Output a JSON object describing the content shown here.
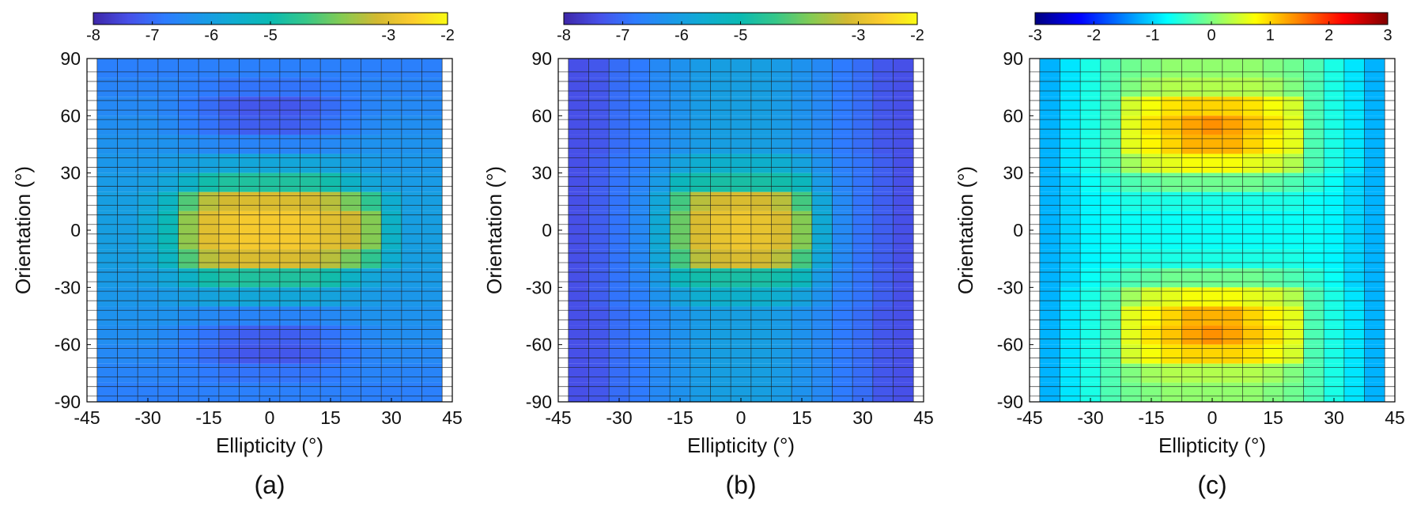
{
  "chart_data": [
    {
      "type": "heatmap",
      "panel_label": "(a)",
      "xlabel": "Ellipticity (°)",
      "ylabel": "Orientation (°)",
      "xlim": [
        -45,
        45
      ],
      "ylim": [
        -90,
        90
      ],
      "x_ticks": [
        -45,
        -30,
        -15,
        0,
        15,
        30,
        45
      ],
      "y_ticks": [
        -90,
        -60,
        -30,
        0,
        30,
        60,
        90
      ],
      "colorbar_range": [
        -8,
        -2
      ],
      "colorbar_ticks": [
        -8,
        -7,
        -6,
        -5,
        -3,
        -2
      ],
      "colormap": "parula",
      "x_centers": [
        -40,
        -35,
        -30,
        -25,
        -20,
        -15,
        -10,
        -5,
        0,
        5,
        10,
        15,
        20,
        25,
        30,
        35,
        40
      ],
      "y_centers": [
        85,
        75,
        65,
        55,
        45,
        35,
        25,
        15,
        5,
        -5,
        -15,
        -25,
        -35,
        -45,
        -55,
        -65,
        -75,
        -85
      ],
      "values": [
        [
          -6.7,
          -6.7,
          -6.7,
          -6.7,
          -6.7,
          -6.7,
          -6.7,
          -6.7,
          -6.7,
          -6.7,
          -6.7,
          -6.7,
          -6.7,
          -6.7,
          -6.7,
          -6.7,
          -6.7
        ],
        [
          -6.6,
          -6.6,
          -6.6,
          -6.6,
          -6.7,
          -6.8,
          -6.9,
          -6.9,
          -6.9,
          -6.9,
          -6.9,
          -6.8,
          -6.7,
          -6.6,
          -6.6,
          -6.6,
          -6.6
        ],
        [
          -6.5,
          -6.5,
          -6.5,
          -6.6,
          -6.8,
          -7.0,
          -7.2,
          -7.3,
          -7.3,
          -7.3,
          -7.2,
          -7.0,
          -6.8,
          -6.6,
          -6.5,
          -6.5,
          -6.5
        ],
        [
          -6.4,
          -6.4,
          -6.4,
          -6.5,
          -6.7,
          -6.9,
          -7.1,
          -7.2,
          -7.2,
          -7.2,
          -7.1,
          -6.9,
          -6.7,
          -6.5,
          -6.4,
          -6.4,
          -6.4
        ],
        [
          -6.3,
          -6.3,
          -6.3,
          -6.3,
          -6.4,
          -6.5,
          -6.6,
          -6.6,
          -6.6,
          -6.6,
          -6.6,
          -6.5,
          -6.4,
          -6.3,
          -6.3,
          -6.3,
          -6.3
        ],
        [
          -6.2,
          -6.2,
          -6.2,
          -6.1,
          -6.0,
          -5.9,
          -5.8,
          -5.8,
          -5.8,
          -5.8,
          -5.8,
          -5.9,
          -6.0,
          -6.1,
          -6.2,
          -6.2,
          -6.2
        ],
        [
          -6.1,
          -6.1,
          -6.0,
          -5.8,
          -5.4,
          -4.9,
          -4.7,
          -4.7,
          -4.7,
          -4.7,
          -4.7,
          -4.9,
          -5.4,
          -5.8,
          -6.0,
          -6.1,
          -6.1
        ],
        [
          -6.0,
          -6.0,
          -5.8,
          -5.3,
          -4.2,
          -3.4,
          -3.2,
          -3.1,
          -3.1,
          -3.1,
          -3.2,
          -3.4,
          -3.9,
          -4.5,
          -5.6,
          -6.0,
          -6.0
        ],
        [
          -6.0,
          -6.0,
          -5.7,
          -5.1,
          -3.7,
          -3.0,
          -2.8,
          -2.7,
          -2.7,
          -2.7,
          -2.8,
          -3.0,
          -3.2,
          -3.8,
          -5.4,
          -6.0,
          -6.0
        ],
        [
          -6.0,
          -6.0,
          -5.7,
          -5.1,
          -3.7,
          -3.0,
          -2.8,
          -2.7,
          -2.7,
          -2.7,
          -2.8,
          -3.0,
          -3.2,
          -3.8,
          -5.4,
          -6.0,
          -6.0
        ],
        [
          -6.0,
          -6.0,
          -5.8,
          -5.3,
          -4.2,
          -3.4,
          -3.2,
          -3.1,
          -3.1,
          -3.1,
          -3.2,
          -3.4,
          -3.9,
          -4.5,
          -5.6,
          -6.0,
          -6.0
        ],
        [
          -6.1,
          -6.1,
          -6.0,
          -5.8,
          -5.4,
          -4.9,
          -4.7,
          -4.7,
          -4.7,
          -4.7,
          -4.7,
          -4.9,
          -5.4,
          -5.8,
          -6.0,
          -6.1,
          -6.1
        ],
        [
          -6.2,
          -6.2,
          -6.2,
          -6.1,
          -6.0,
          -5.9,
          -5.8,
          -5.8,
          -5.8,
          -5.8,
          -5.8,
          -5.9,
          -6.0,
          -6.1,
          -6.2,
          -6.2,
          -6.2
        ],
        [
          -6.3,
          -6.3,
          -6.3,
          -6.3,
          -6.4,
          -6.5,
          -6.6,
          -6.6,
          -6.6,
          -6.6,
          -6.6,
          -6.5,
          -6.4,
          -6.3,
          -6.3,
          -6.3,
          -6.3
        ],
        [
          -6.4,
          -6.4,
          -6.4,
          -6.5,
          -6.7,
          -6.9,
          -7.1,
          -7.2,
          -7.2,
          -7.2,
          -7.1,
          -6.9,
          -6.7,
          -6.5,
          -6.4,
          -6.4,
          -6.4
        ],
        [
          -6.5,
          -6.5,
          -6.5,
          -6.6,
          -6.8,
          -7.0,
          -7.2,
          -7.3,
          -7.3,
          -7.3,
          -7.2,
          -7.0,
          -6.8,
          -6.6,
          -6.5,
          -6.5,
          -6.5
        ],
        [
          -6.6,
          -6.6,
          -6.6,
          -6.6,
          -6.7,
          -6.8,
          -6.9,
          -6.9,
          -6.9,
          -6.9,
          -6.9,
          -6.8,
          -6.7,
          -6.6,
          -6.6,
          -6.6,
          -6.6
        ],
        [
          -6.7,
          -6.7,
          -6.7,
          -6.7,
          -6.7,
          -6.7,
          -6.7,
          -6.7,
          -6.7,
          -6.7,
          -6.7,
          -6.7,
          -6.7,
          -6.7,
          -6.7,
          -6.7,
          -6.7
        ]
      ]
    },
    {
      "type": "heatmap",
      "panel_label": "(b)",
      "xlabel": "Ellipticity (°)",
      "ylabel": "Orientation (°)",
      "xlim": [
        -45,
        45
      ],
      "ylim": [
        -90,
        90
      ],
      "x_ticks": [
        -45,
        -30,
        -15,
        0,
        15,
        30,
        45
      ],
      "y_ticks": [
        -90,
        -60,
        -30,
        0,
        30,
        60,
        90
      ],
      "colorbar_range": [
        -8,
        -2
      ],
      "colorbar_ticks": [
        -8,
        -7,
        -6,
        -5,
        -3,
        -2
      ],
      "colormap": "parula",
      "x_centers": [
        -40,
        -35,
        -30,
        -25,
        -20,
        -15,
        -10,
        -5,
        0,
        5,
        10,
        15,
        20,
        25,
        30,
        35,
        40
      ],
      "y_centers": [
        85,
        75,
        65,
        55,
        45,
        35,
        25,
        15,
        5,
        -5,
        -15,
        -25,
        -35,
        -45,
        -55,
        -65,
        -75,
        -85
      ],
      "values": [
        [
          -7.4,
          -7.3,
          -7.0,
          -6.8,
          -6.5,
          -6.3,
          -6.1,
          -6.0,
          -6.0,
          -6.0,
          -6.1,
          -6.3,
          -6.5,
          -6.8,
          -7.0,
          -7.3,
          -7.4
        ],
        [
          -7.4,
          -7.3,
          -7.0,
          -6.8,
          -6.5,
          -6.3,
          -6.1,
          -6.0,
          -6.0,
          -6.0,
          -6.1,
          -6.3,
          -6.5,
          -6.8,
          -7.0,
          -7.3,
          -7.4
        ],
        [
          -7.4,
          -7.3,
          -7.0,
          -6.8,
          -6.5,
          -6.3,
          -6.1,
          -6.0,
          -6.0,
          -6.0,
          -6.1,
          -6.3,
          -6.5,
          -6.8,
          -7.0,
          -7.3,
          -7.4
        ],
        [
          -7.4,
          -7.3,
          -7.0,
          -6.8,
          -6.5,
          -6.3,
          -6.1,
          -6.0,
          -6.0,
          -6.0,
          -6.1,
          -6.3,
          -6.5,
          -6.8,
          -7.0,
          -7.3,
          -7.4
        ],
        [
          -7.4,
          -7.3,
          -7.0,
          -6.8,
          -6.5,
          -6.3,
          -6.1,
          -6.0,
          -6.0,
          -6.0,
          -6.1,
          -6.3,
          -6.5,
          -6.8,
          -7.0,
          -7.3,
          -7.4
        ],
        [
          -7.4,
          -7.2,
          -6.9,
          -6.7,
          -6.3,
          -5.9,
          -5.6,
          -5.5,
          -5.5,
          -5.5,
          -5.6,
          -5.9,
          -6.3,
          -6.7,
          -6.9,
          -7.2,
          -7.4
        ],
        [
          -7.4,
          -7.2,
          -6.9,
          -6.6,
          -6.1,
          -5.2,
          -4.9,
          -4.8,
          -4.8,
          -4.8,
          -4.9,
          -5.2,
          -6.1,
          -6.6,
          -6.9,
          -7.2,
          -7.4
        ],
        [
          -7.4,
          -7.2,
          -6.9,
          -6.5,
          -5.8,
          -4.3,
          -3.4,
          -3.2,
          -3.1,
          -3.2,
          -3.4,
          -4.3,
          -5.8,
          -6.5,
          -6.9,
          -7.2,
          -7.4
        ],
        [
          -7.4,
          -7.2,
          -6.9,
          -6.5,
          -5.7,
          -4.0,
          -3.1,
          -2.9,
          -2.8,
          -2.9,
          -3.1,
          -3.8,
          -5.7,
          -6.5,
          -6.9,
          -7.2,
          -7.4
        ],
        [
          -7.4,
          -7.2,
          -6.9,
          -6.5,
          -5.7,
          -4.0,
          -3.1,
          -2.9,
          -2.8,
          -2.9,
          -3.1,
          -3.8,
          -5.7,
          -6.5,
          -6.9,
          -7.2,
          -7.4
        ],
        [
          -7.4,
          -7.2,
          -6.9,
          -6.5,
          -5.8,
          -4.3,
          -3.4,
          -3.2,
          -3.1,
          -3.2,
          -3.4,
          -4.3,
          -5.8,
          -6.5,
          -6.9,
          -7.2,
          -7.4
        ],
        [
          -7.4,
          -7.2,
          -6.9,
          -6.6,
          -6.1,
          -5.2,
          -4.9,
          -4.8,
          -4.8,
          -4.8,
          -4.9,
          -5.2,
          -6.1,
          -6.6,
          -6.9,
          -7.2,
          -7.4
        ],
        [
          -7.4,
          -7.2,
          -6.9,
          -6.7,
          -6.3,
          -5.9,
          -5.6,
          -5.5,
          -5.5,
          -5.5,
          -5.6,
          -5.9,
          -6.3,
          -6.7,
          -6.9,
          -7.2,
          -7.4
        ],
        [
          -7.4,
          -7.3,
          -7.0,
          -6.8,
          -6.5,
          -6.3,
          -6.1,
          -6.0,
          -6.0,
          -6.0,
          -6.1,
          -6.3,
          -6.5,
          -6.8,
          -7.0,
          -7.3,
          -7.4
        ],
        [
          -7.4,
          -7.3,
          -7.0,
          -6.8,
          -6.5,
          -6.3,
          -6.1,
          -6.0,
          -6.0,
          -6.0,
          -6.1,
          -6.3,
          -6.5,
          -6.8,
          -7.0,
          -7.3,
          -7.4
        ],
        [
          -7.4,
          -7.3,
          -7.0,
          -6.8,
          -6.5,
          -6.3,
          -6.1,
          -6.0,
          -6.0,
          -6.0,
          -6.1,
          -6.3,
          -6.5,
          -6.8,
          -7.0,
          -7.3,
          -7.4
        ],
        [
          -7.4,
          -7.3,
          -7.0,
          -6.8,
          -6.5,
          -6.3,
          -6.1,
          -6.0,
          -6.0,
          -6.0,
          -6.1,
          -6.3,
          -6.5,
          -6.8,
          -7.0,
          -7.3,
          -7.4
        ],
        [
          -7.4,
          -7.3,
          -7.0,
          -6.8,
          -6.5,
          -6.3,
          -6.1,
          -6.0,
          -6.0,
          -6.0,
          -6.1,
          -6.3,
          -6.5,
          -6.8,
          -7.0,
          -7.3,
          -7.4
        ]
      ]
    },
    {
      "type": "heatmap",
      "panel_label": "(c)",
      "xlabel": "Ellipticity (°)",
      "ylabel": "Orientation (°)",
      "xlim": [
        -45,
        45
      ],
      "ylim": [
        -90,
        90
      ],
      "x_ticks": [
        -45,
        -30,
        -15,
        0,
        15,
        30,
        45
      ],
      "y_ticks": [
        -90,
        -60,
        -30,
        0,
        30,
        60,
        90
      ],
      "colorbar_range": [
        -3,
        3
      ],
      "colorbar_ticks": [
        -3,
        -2,
        -1,
        0,
        1,
        2,
        3
      ],
      "colormap": "jet",
      "x_centers": [
        -40,
        -35,
        -30,
        -25,
        -20,
        -15,
        -10,
        -5,
        0,
        5,
        10,
        15,
        20,
        25,
        30,
        35,
        40
      ],
      "y_centers": [
        85,
        75,
        65,
        55,
        45,
        35,
        25,
        15,
        5,
        -5,
        -15,
        -25,
        -35,
        -45,
        -55,
        -65,
        -75,
        -85
      ],
      "values": [
        [
          -1.2,
          -0.9,
          -0.6,
          -0.3,
          -0.1,
          0.0,
          0.1,
          0.1,
          0.1,
          0.1,
          0.1,
          0.0,
          -0.1,
          -0.3,
          -0.6,
          -0.9,
          -1.2
        ],
        [
          -1.2,
          -0.9,
          -0.6,
          -0.3,
          0.0,
          0.2,
          0.3,
          0.3,
          0.3,
          0.3,
          0.3,
          0.2,
          0.0,
          -0.3,
          -0.6,
          -0.9,
          -1.2
        ],
        [
          -1.2,
          -0.9,
          -0.6,
          -0.3,
          0.5,
          0.7,
          0.9,
          1.0,
          1.0,
          1.0,
          0.9,
          0.7,
          0.5,
          -0.3,
          -0.6,
          -0.9,
          -1.2
        ],
        [
          -1.2,
          -0.9,
          -0.6,
          -0.3,
          0.6,
          0.9,
          1.1,
          1.3,
          1.4,
          1.3,
          1.1,
          0.9,
          0.6,
          -0.3,
          -0.6,
          -0.9,
          -1.2
        ],
        [
          -1.2,
          -0.9,
          -0.6,
          -0.3,
          0.6,
          0.8,
          1.0,
          1.2,
          1.2,
          1.2,
          1.0,
          0.8,
          0.6,
          -0.3,
          -0.6,
          -0.9,
          -1.2
        ],
        [
          -1.2,
          -0.9,
          -0.6,
          -0.3,
          0.2,
          0.5,
          0.6,
          0.7,
          0.7,
          0.7,
          0.6,
          0.5,
          0.3,
          -0.3,
          -0.6,
          -0.9,
          -1.2
        ],
        [
          -1.2,
          -1.0,
          -0.7,
          -0.5,
          -0.3,
          -0.2,
          -0.1,
          -0.1,
          -0.1,
          -0.1,
          -0.1,
          -0.2,
          -0.3,
          -0.5,
          -0.7,
          -1.0,
          -1.2
        ],
        [
          -1.2,
          -1.0,
          -0.8,
          -0.7,
          -0.6,
          -0.6,
          -0.6,
          -0.6,
          -0.6,
          -0.6,
          -0.6,
          -0.6,
          -0.6,
          -0.7,
          -0.8,
          -1.0,
          -1.2
        ],
        [
          -1.2,
          -1.0,
          -0.8,
          -0.7,
          -0.7,
          -0.7,
          -0.7,
          -0.7,
          -0.7,
          -0.7,
          -0.7,
          -0.7,
          -0.7,
          -0.7,
          -0.8,
          -1.0,
          -1.2
        ],
        [
          -1.2,
          -1.0,
          -0.8,
          -0.7,
          -0.7,
          -0.7,
          -0.7,
          -0.7,
          -0.7,
          -0.7,
          -0.7,
          -0.7,
          -0.7,
          -0.7,
          -0.8,
          -1.0,
          -1.2
        ],
        [
          -1.2,
          -1.0,
          -0.8,
          -0.7,
          -0.6,
          -0.6,
          -0.6,
          -0.6,
          -0.6,
          -0.6,
          -0.6,
          -0.6,
          -0.6,
          -0.7,
          -0.8,
          -1.0,
          -1.2
        ],
        [
          -1.2,
          -1.0,
          -0.7,
          -0.5,
          -0.3,
          -0.2,
          -0.1,
          -0.1,
          -0.1,
          -0.1,
          -0.1,
          -0.2,
          -0.3,
          -0.5,
          -0.7,
          -1.0,
          -1.2
        ],
        [
          -1.2,
          -0.9,
          -0.6,
          -0.3,
          0.2,
          0.5,
          0.6,
          0.7,
          0.7,
          0.7,
          0.6,
          0.5,
          0.3,
          -0.3,
          -0.6,
          -0.9,
          -1.2
        ],
        [
          -1.2,
          -0.9,
          -0.6,
          -0.3,
          0.6,
          0.8,
          1.0,
          1.2,
          1.2,
          1.2,
          1.0,
          0.8,
          0.6,
          -0.3,
          -0.6,
          -0.9,
          -1.2
        ],
        [
          -1.2,
          -0.9,
          -0.6,
          -0.3,
          0.6,
          0.9,
          1.1,
          1.3,
          1.4,
          1.3,
          1.1,
          0.9,
          0.6,
          -0.3,
          -0.6,
          -0.9,
          -1.2
        ],
        [
          -1.2,
          -0.9,
          -0.6,
          -0.3,
          0.5,
          0.7,
          0.9,
          1.0,
          1.0,
          1.0,
          0.9,
          0.7,
          0.5,
          -0.3,
          -0.6,
          -0.9,
          -1.2
        ],
        [
          -1.2,
          -0.9,
          -0.6,
          -0.3,
          0.0,
          0.2,
          0.3,
          0.3,
          0.3,
          0.3,
          0.3,
          0.2,
          0.0,
          -0.3,
          -0.6,
          -0.9,
          -1.2
        ],
        [
          -1.2,
          -0.9,
          -0.6,
          -0.3,
          -0.1,
          0.0,
          0.1,
          0.1,
          0.1,
          0.1,
          0.1,
          0.0,
          -0.1,
          -0.3,
          -0.6,
          -0.9,
          -1.2
        ]
      ]
    }
  ]
}
